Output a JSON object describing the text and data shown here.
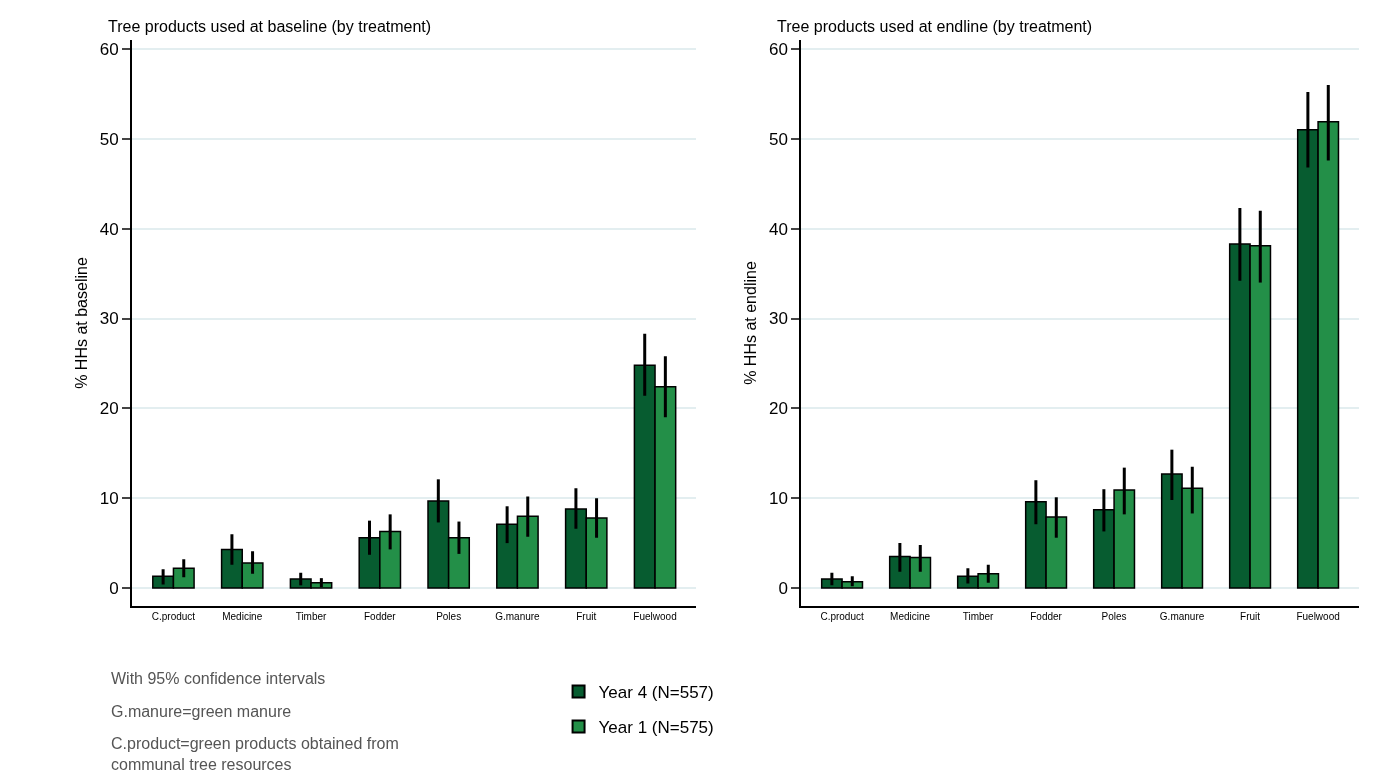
{
  "chart_data": [
    {
      "type": "bar",
      "title": "Tree products used at baseline (by treatment)",
      "ylabel": "% HHs at baseline",
      "categories": [
        "C.product",
        "Medicine",
        "Timber",
        "Fodder",
        "Poles",
        "G.manure",
        "Fruit",
        "Fuelwood"
      ],
      "series": [
        {
          "name": "Year 4 (N=557)",
          "color": "#075c30",
          "values": [
            1.3,
            4.3,
            1.0,
            5.6,
            9.7,
            7.1,
            8.8,
            24.8
          ],
          "errors": [
            [
              0.4,
              2.1
            ],
            [
              2.6,
              6.0
            ],
            [
              0.3,
              1.7
            ],
            [
              3.7,
              7.5
            ],
            [
              7.3,
              12.1
            ],
            [
              5.0,
              9.1
            ],
            [
              6.6,
              11.1
            ],
            [
              21.4,
              28.3
            ]
          ]
        },
        {
          "name": "Year 1 (N=575)",
          "color": "#238f48",
          "values": [
            2.2,
            2.8,
            0.6,
            6.3,
            5.6,
            8.0,
            7.8,
            22.4
          ],
          "errors": [
            [
              1.2,
              3.2
            ],
            [
              1.6,
              4.1
            ],
            [
              0.1,
              1.1
            ],
            [
              4.3,
              8.2
            ],
            [
              3.8,
              7.4
            ],
            [
              5.7,
              10.2
            ],
            [
              5.6,
              10.0
            ],
            [
              19.0,
              25.8
            ]
          ]
        }
      ],
      "ylim": [
        -2,
        61
      ],
      "yticks": [
        0,
        10,
        20,
        30,
        40,
        50,
        60
      ],
      "grid": "y",
      "legend": "bottom",
      "annotations": [
        "With 95% confidence intervals",
        "G.manure=green manure",
        "C.product=green products obtained from communal tree resources"
      ]
    },
    {
      "type": "bar",
      "title": "Tree products used at endline (by treatment)",
      "ylabel": "% HHs at endline",
      "categories": [
        "C.product",
        "Medicine",
        "Timber",
        "Fodder",
        "Poles",
        "G.manure",
        "Fruit",
        "Fuelwood"
      ],
      "series": [
        {
          "color": "#075c30",
          "values": [
            1.0,
            3.5,
            1.3,
            9.6,
            8.7,
            12.7,
            38.3,
            51.0
          ],
          "errors": [
            [
              0.3,
              1.7
            ],
            [
              1.8,
              5.0
            ],
            [
              0.5,
              2.2
            ],
            [
              7.1,
              12.0
            ],
            [
              6.3,
              11.0
            ],
            [
              9.8,
              15.4
            ],
            [
              34.2,
              42.3
            ],
            [
              46.8,
              55.2
            ]
          ]
        },
        {
          "color": "#238f48",
          "values": [
            0.7,
            3.4,
            1.6,
            7.9,
            10.9,
            11.1,
            38.1,
            51.9
          ],
          "errors": [
            [
              0.2,
              1.3
            ],
            [
              1.8,
              4.8
            ],
            [
              0.6,
              2.6
            ],
            [
              5.6,
              10.1
            ],
            [
              8.2,
              13.4
            ],
            [
              8.3,
              13.5
            ],
            [
              34.0,
              42.0
            ],
            [
              47.6,
              56.0
            ]
          ]
        }
      ],
      "ylim": [
        -2,
        61
      ],
      "yticks": [
        0,
        10,
        20,
        30,
        40,
        50,
        60
      ],
      "grid": "y"
    }
  ]
}
